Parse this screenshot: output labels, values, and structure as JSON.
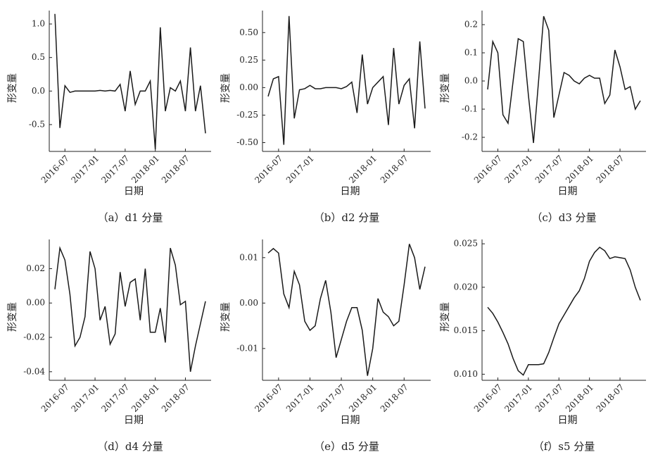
{
  "chart_data": [
    {
      "type": "line",
      "caption": "（a）d1 分量",
      "xlabel": "日期",
      "ylabel": "形变量",
      "x": [
        "2016-05",
        "2016-06",
        "2016-07",
        "2016-08",
        "2016-09",
        "2016-10",
        "2016-11",
        "2016-12",
        "2017-01",
        "2017-02",
        "2017-03",
        "2017-04",
        "2017-05",
        "2017-06",
        "2017-07",
        "2017-08",
        "2017-09",
        "2017-10",
        "2017-11",
        "2017-12",
        "2018-01",
        "2018-02",
        "2018-03",
        "2018-04",
        "2018-05",
        "2018-06",
        "2018-07",
        "2018-08",
        "2018-09",
        "2018-10",
        "2018-11"
      ],
      "xticks": [
        "2016-07",
        "2017-01",
        "2017-07",
        "2018-01",
        "2018-07"
      ],
      "series": [
        {
          "color": "#1a1a1a",
          "values": [
            1.15,
            -0.55,
            0.08,
            -0.02,
            0.0,
            0.0,
            0.0,
            0.0,
            0.0,
            0.01,
            0.0,
            0.01,
            0.0,
            0.1,
            -0.3,
            0.3,
            -0.2,
            0.0,
            0.0,
            0.15,
            -0.87,
            0.95,
            -0.3,
            0.05,
            0.0,
            0.15,
            -0.3,
            0.65,
            -0.3,
            0.08,
            -0.63
          ]
        }
      ],
      "ylim": [
        -0.9,
        1.2
      ],
      "yticks": [
        -0.5,
        {
          "value": 0,
          "label": "0.0"
        },
        0.5,
        {
          "value": 1,
          "label": "1.0"
        }
      ]
    },
    {
      "type": "line",
      "caption": "（b）d2 分量",
      "xlabel": "日期",
      "ylabel": "形变量",
      "x": [
        "2016-05",
        "2016-06",
        "2016-07",
        "2016-08",
        "2016-09",
        "2016-10",
        "2016-11",
        "2016-12",
        "2017-01",
        "2017-02",
        "2017-03",
        "2017-04",
        "2017-05",
        "2017-06",
        "2017-07",
        "2017-08",
        "2017-09",
        "2017-10",
        "2017-11",
        "2017-12",
        "2018-01",
        "2018-02",
        "2018-03",
        "2018-04",
        "2018-05",
        "2018-06",
        "2018-07",
        "2018-08",
        "2018-09",
        "2018-10",
        "2018-11"
      ],
      "xticks": [
        "2016-07",
        "2017-01",
        "2018-01",
        "2018-07"
      ],
      "series": [
        {
          "color": "#1a1a1a",
          "values": [
            -0.08,
            0.08,
            0.1,
            -0.52,
            0.65,
            -0.28,
            -0.02,
            -0.01,
            0.02,
            -0.01,
            -0.01,
            0.0,
            0.0,
            0.0,
            -0.01,
            0.01,
            0.05,
            -0.23,
            0.3,
            -0.15,
            0.0,
            0.05,
            0.1,
            -0.34,
            0.36,
            -0.15,
            0.02,
            0.08,
            -0.37,
            0.42,
            -0.19
          ]
        }
      ],
      "ylim": [
        -0.58,
        0.7
      ],
      "yticks": [
        {
          "value": -0.5,
          "label": "-0.50"
        },
        -0.25,
        {
          "value": 0,
          "label": "0.00"
        },
        0.25,
        {
          "value": 0.5,
          "label": "0.50"
        }
      ]
    },
    {
      "type": "line",
      "caption": "（c）d3 分量",
      "xlabel": "日期",
      "ylabel": "形变量",
      "x": [
        "2016-05",
        "2016-06",
        "2016-07",
        "2016-08",
        "2016-09",
        "2016-10",
        "2016-11",
        "2016-12",
        "2017-01",
        "2017-02",
        "2017-03",
        "2017-04",
        "2017-05",
        "2017-06",
        "2017-07",
        "2017-08",
        "2017-09",
        "2017-10",
        "2017-11",
        "2017-12",
        "2018-01",
        "2018-02",
        "2018-03",
        "2018-04",
        "2018-05",
        "2018-06",
        "2018-07",
        "2018-08",
        "2018-09",
        "2018-10",
        "2018-11"
      ],
      "xticks": [
        "2016-07",
        "2017-01",
        "2017-07",
        "2018-01",
        "2018-07"
      ],
      "series": [
        {
          "color": "#1a1a1a",
          "values": [
            -0.03,
            0.14,
            0.1,
            -0.12,
            -0.15,
            0.0,
            0.15,
            0.14,
            -0.05,
            -0.22,
            0.0,
            0.23,
            0.18,
            -0.13,
            -0.05,
            0.03,
            0.02,
            0.0,
            -0.01,
            0.01,
            0.02,
            0.01,
            0.01,
            -0.08,
            -0.05,
            0.11,
            0.05,
            -0.03,
            -0.02,
            -0.1,
            -0.07
          ]
        }
      ],
      "ylim": [
        -0.25,
        0.25
      ],
      "yticks": [
        -0.2,
        -0.1,
        {
          "value": 0,
          "label": "0.0"
        },
        0.1,
        0.2
      ]
    },
    {
      "type": "line",
      "caption": "（d）d4 分量",
      "xlabel": "日期",
      "ylabel": "形变量",
      "x": [
        "2016-05",
        "2016-06",
        "2016-07",
        "2016-08",
        "2016-09",
        "2016-10",
        "2016-11",
        "2016-12",
        "2017-01",
        "2017-02",
        "2017-03",
        "2017-04",
        "2017-05",
        "2017-06",
        "2017-07",
        "2017-08",
        "2017-09",
        "2017-10",
        "2017-11",
        "2017-12",
        "2018-01",
        "2018-02",
        "2018-03",
        "2018-04",
        "2018-05",
        "2018-06",
        "2018-07",
        "2018-08",
        "2018-09",
        "2018-10",
        "2018-11"
      ],
      "xticks": [
        "2016-07",
        "2017-01",
        "2017-07",
        "2018-01",
        "2018-07"
      ],
      "series": [
        {
          "color": "#1a1a1a",
          "values": [
            0.008,
            0.032,
            0.025,
            0.005,
            -0.025,
            -0.02,
            -0.008,
            0.03,
            0.02,
            -0.01,
            -0.002,
            -0.024,
            -0.018,
            0.018,
            -0.002,
            0.012,
            0.014,
            -0.01,
            0.02,
            -0.017,
            -0.017,
            -0.003,
            -0.023,
            0.032,
            0.022,
            -0.001,
            0.001,
            -0.04,
            -0.025,
            -0.012,
            0.001
          ]
        }
      ],
      "ylim": [
        -0.045,
        0.037
      ],
      "yticks": [
        -0.04,
        -0.02,
        {
          "value": 0,
          "label": "0.00"
        },
        0.02
      ]
    },
    {
      "type": "line",
      "caption": "（e）d5 分量",
      "xlabel": "日期",
      "ylabel": "形变量",
      "x": [
        "2016-05",
        "2016-06",
        "2016-07",
        "2016-08",
        "2016-09",
        "2016-10",
        "2016-11",
        "2016-12",
        "2017-01",
        "2017-02",
        "2017-03",
        "2017-04",
        "2017-05",
        "2017-06",
        "2017-07",
        "2017-08",
        "2017-09",
        "2017-10",
        "2017-11",
        "2017-12",
        "2018-01",
        "2018-02",
        "2018-03",
        "2018-04",
        "2018-05",
        "2018-06",
        "2018-07",
        "2018-08",
        "2018-09",
        "2018-10",
        "2018-11"
      ],
      "xticks": [
        "2016-07",
        "2017-01",
        "2017-07",
        "2018-01",
        "2018-07"
      ],
      "series": [
        {
          "color": "#1a1a1a",
          "values": [
            0.011,
            0.012,
            0.011,
            0.002,
            -0.001,
            0.007,
            0.004,
            -0.004,
            -0.006,
            -0.005,
            0.001,
            0.005,
            -0.002,
            -0.012,
            -0.008,
            -0.004,
            -0.001,
            -0.001,
            -0.006,
            -0.016,
            -0.01,
            0.001,
            -0.002,
            -0.003,
            -0.005,
            -0.004,
            0.004,
            0.013,
            0.01,
            0.003,
            0.008
          ]
        }
      ],
      "ylim": [
        -0.017,
        0.014
      ],
      "yticks": [
        -0.01,
        {
          "value": 0,
          "label": "0.00"
        },
        0.01
      ]
    },
    {
      "type": "line",
      "caption": "（f）s5 分量",
      "xlabel": "日期",
      "ylabel": "形变量",
      "x": [
        "2016-05",
        "2016-06",
        "2016-07",
        "2016-08",
        "2016-09",
        "2016-10",
        "2016-11",
        "2016-12",
        "2017-01",
        "2017-02",
        "2017-03",
        "2017-04",
        "2017-05",
        "2017-06",
        "2017-07",
        "2017-08",
        "2017-09",
        "2017-10",
        "2017-11",
        "2017-12",
        "2018-01",
        "2018-02",
        "2018-03",
        "2018-04",
        "2018-05",
        "2018-06",
        "2018-07",
        "2018-08",
        "2018-09",
        "2018-10",
        "2018-11"
      ],
      "xticks": [
        "2016-07",
        "2017-01",
        "2017-07",
        "2018-01",
        "2018-07"
      ],
      "series": [
        {
          "color": "#1a1a1a",
          "values": [
            0.0177,
            0.017,
            0.016,
            0.0148,
            0.0135,
            0.0118,
            0.0104,
            0.0099,
            0.0111,
            0.0111,
            0.0111,
            0.0112,
            0.0125,
            0.0142,
            0.0158,
            0.0168,
            0.0178,
            0.0188,
            0.0196,
            0.021,
            0.023,
            0.024,
            0.0246,
            0.0242,
            0.0233,
            0.0235,
            0.0234,
            0.0233,
            0.022,
            0.02,
            0.0185
          ]
        }
      ],
      "ylim": [
        0.0093,
        0.0255
      ],
      "yticks": [
        {
          "value": 0.01,
          "label": "0.010"
        },
        0.015,
        {
          "value": 0.02,
          "label": "0.020"
        },
        0.025
      ]
    }
  ]
}
